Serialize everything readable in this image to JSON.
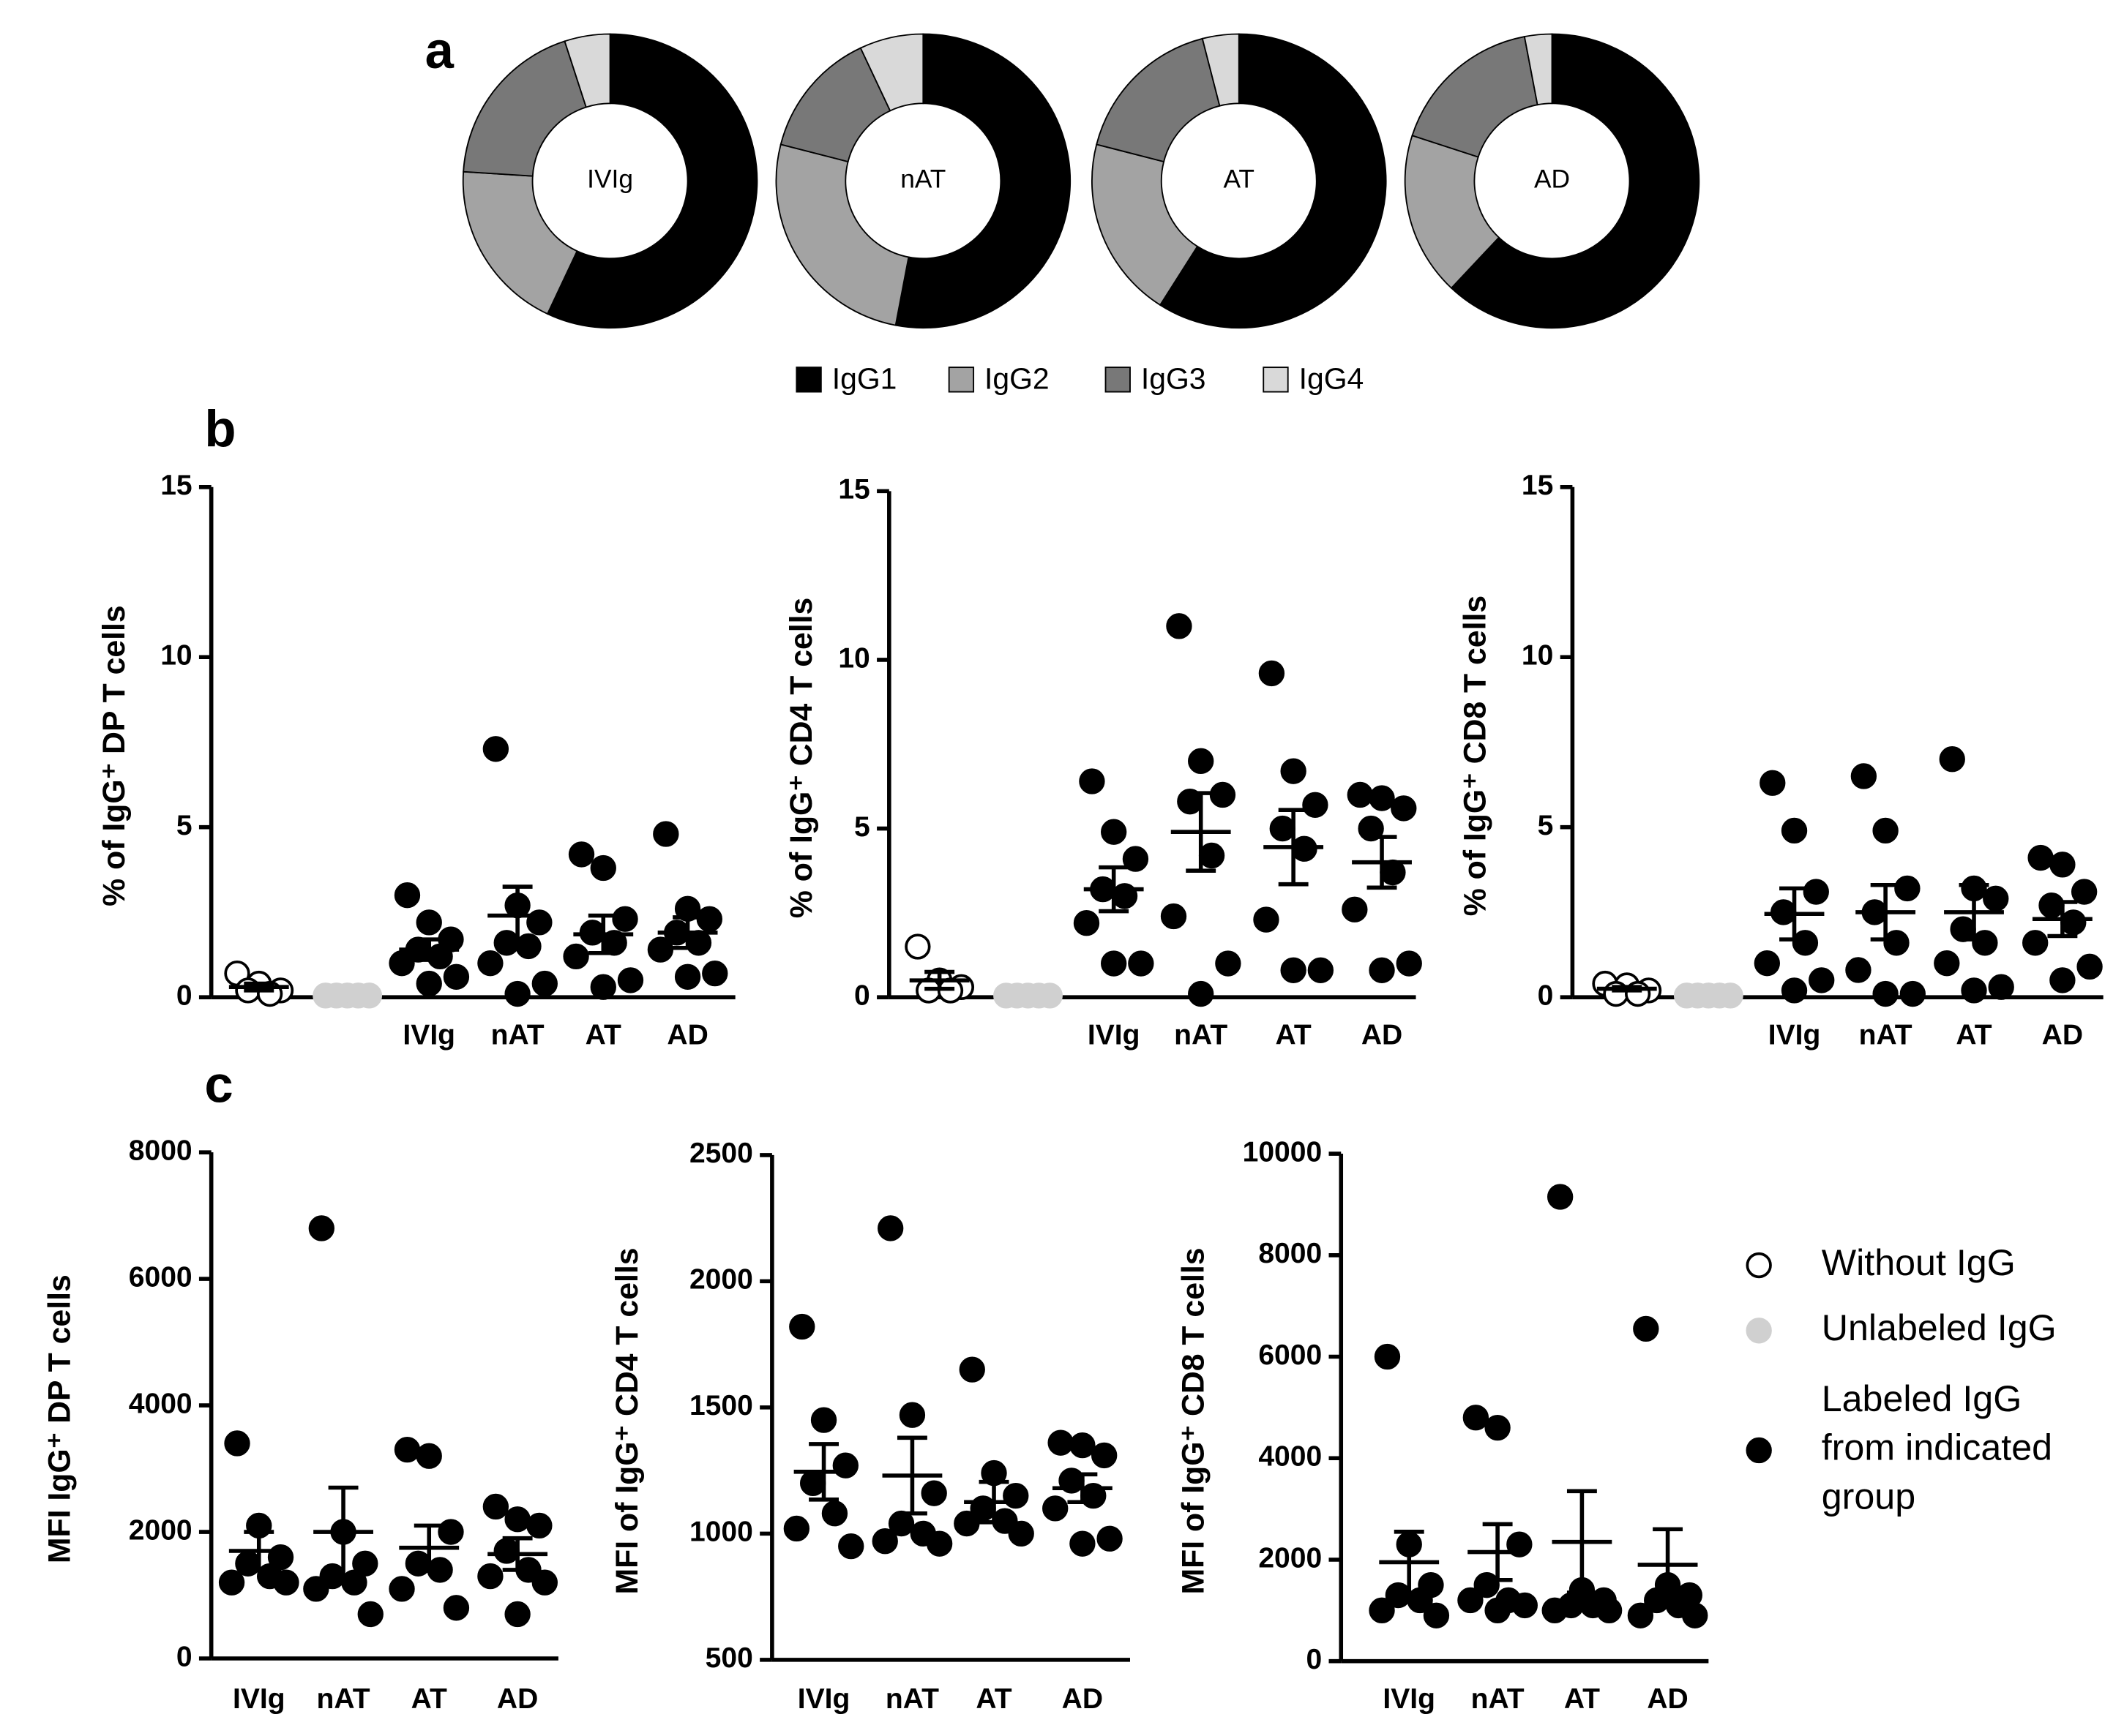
{
  "panel_labels": [
    "a",
    "b",
    "c"
  ],
  "legend": [
    {
      "label_lines": [
        "Without IgG"
      ],
      "fill": "#ffffff",
      "stroke": "#000000"
    },
    {
      "label_lines": [
        "Unlabeled IgG"
      ],
      "fill": "#d0d0d0",
      "stroke": "#d0d0d0"
    },
    {
      "label_lines": [
        "Labeled IgG",
        "from indicated",
        "group"
      ],
      "fill": "#000000",
      "stroke": "#000000"
    }
  ],
  "chart_data": [
    {
      "type": "pie",
      "title": "IVIg",
      "categories": [
        "IgG1",
        "IgG2",
        "IgG3",
        "IgG4"
      ],
      "values": [
        57,
        19,
        19,
        5
      ],
      "colors": [
        "#000000",
        "#a3a3a3",
        "#787878",
        "#d9d9d9"
      ]
    },
    {
      "type": "pie",
      "title": "nAT",
      "categories": [
        "IgG1",
        "IgG2",
        "IgG3",
        "IgG4"
      ],
      "values": [
        53,
        26,
        14,
        7
      ],
      "colors": [
        "#000000",
        "#a3a3a3",
        "#787878",
        "#d9d9d9"
      ]
    },
    {
      "type": "pie",
      "title": "AT",
      "categories": [
        "IgG1",
        "IgG2",
        "IgG3",
        "IgG4"
      ],
      "values": [
        59,
        20,
        17,
        4
      ],
      "colors": [
        "#000000",
        "#a3a3a3",
        "#787878",
        "#d9d9d9"
      ]
    },
    {
      "type": "pie",
      "title": "AD",
      "categories": [
        "IgG1",
        "IgG2",
        "IgG3",
        "IgG4"
      ],
      "values": [
        62,
        18,
        17,
        3
      ],
      "colors": [
        "#000000",
        "#a3a3a3",
        "#787878",
        "#d9d9d9"
      ]
    },
    {
      "type": "dot",
      "y_label": "% of IgG⁺ DP T cells",
      "categories": [
        null,
        null,
        "IVIg",
        "nAT",
        "AT",
        "AD"
      ],
      "colors": [
        "#ffffff",
        "#d0d0d0",
        "#000000",
        "#000000",
        "#000000",
        "#000000"
      ],
      "points": [
        [
          0.7,
          0.4,
          0.2,
          0.2,
          0.1
        ],
        [
          0.05,
          0.05,
          0.05,
          0.05,
          0.05
        ],
        [
          3.0,
          2.2,
          1.7,
          1.4,
          1.2,
          1.0,
          0.6,
          0.4
        ],
        [
          7.3,
          2.7,
          2.2,
          1.6,
          1.5,
          1.0,
          0.4,
          0.1
        ],
        [
          4.2,
          3.8,
          2.3,
          1.9,
          1.6,
          1.2,
          0.5,
          0.3
        ],
        [
          4.8,
          2.6,
          2.3,
          1.9,
          1.6,
          1.4,
          0.7,
          0.6
        ]
      ],
      "means": [
        0.3,
        0.05,
        1.4,
        2.4,
        1.85,
        1.9
      ],
      "sems": [
        0.1,
        0,
        0.3,
        0.85,
        0.55,
        0.45
      ],
      "ylim": [
        0,
        15
      ],
      "yticks": [
        0,
        5,
        10,
        15
      ]
    },
    {
      "type": "dot",
      "y_label": "% of IgG⁺ CD4 T cells",
      "categories": [
        null,
        null,
        "IVIg",
        "nAT",
        "AT",
        "AD"
      ],
      "colors": [
        "#ffffff",
        "#d0d0d0",
        "#000000",
        "#000000",
        "#000000",
        "#000000"
      ],
      "points": [
        [
          1.5,
          0.5,
          0.3,
          0.2,
          0.2
        ],
        [
          0.05,
          0.05,
          0.05,
          0.05,
          0.05
        ],
        [
          6.4,
          4.9,
          4.1,
          3.2,
          3.0,
          2.2,
          1.0,
          1.0
        ],
        [
          11.0,
          7.0,
          6.0,
          5.8,
          4.2,
          2.4,
          1.0,
          0.1
        ],
        [
          9.6,
          6.7,
          5.7,
          5.0,
          4.4,
          2.3,
          0.8,
          0.8
        ],
        [
          6.0,
          5.9,
          5.6,
          5.0,
          3.7,
          2.6,
          1.0,
          0.8
        ]
      ],
      "means": [
        0.5,
        0.05,
        3.2,
        4.9,
        4.45,
        4.0
      ],
      "sems": [
        0.25,
        0,
        0.65,
        1.15,
        1.1,
        0.75
      ],
      "ylim": [
        0,
        15
      ],
      "yticks": [
        0,
        5,
        10,
        15
      ]
    },
    {
      "type": "dot",
      "y_label": "% of IgG⁺ CD8 T cells",
      "categories": [
        null,
        null,
        "IVIg",
        "nAT",
        "AT",
        "AD"
      ],
      "colors": [
        "#ffffff",
        "#d0d0d0",
        "#000000",
        "#000000",
        "#000000",
        "#000000"
      ],
      "points": [
        [
          0.4,
          0.35,
          0.2,
          0.1,
          0.1
        ],
        [
          0.05,
          0.05,
          0.05,
          0.05,
          0.05
        ],
        [
          6.3,
          4.9,
          3.1,
          2.5,
          1.6,
          1.0,
          0.5,
          0.2
        ],
        [
          6.5,
          4.9,
          3.2,
          2.5,
          1.6,
          0.8,
          0.1,
          0.1
        ],
        [
          7.0,
          3.2,
          2.9,
          2.0,
          1.6,
          1.0,
          0.3,
          0.2
        ],
        [
          4.1,
          3.9,
          3.1,
          2.7,
          2.2,
          1.6,
          0.9,
          0.5
        ]
      ],
      "means": [
        0.25,
        0.05,
        2.45,
        2.5,
        2.5,
        2.3
      ],
      "sems": [
        0.05,
        0,
        0.75,
        0.8,
        0.8,
        0.5
      ],
      "ylim": [
        0,
        15
      ],
      "yticks": [
        0,
        5,
        10,
        15
      ]
    },
    {
      "type": "dot",
      "y_label": "MFI IgG⁺ DP T cells",
      "categories": [
        "IVIg",
        "nAT",
        "AT",
        "AD"
      ],
      "colors": [
        "#000000",
        "#000000",
        "#000000",
        "#000000"
      ],
      "points": [
        [
          3400,
          2100,
          1600,
          1500,
          1300,
          1200,
          1200
        ],
        [
          6800,
          2000,
          1500,
          1300,
          1200,
          1100,
          700
        ],
        [
          3300,
          3200,
          2000,
          1500,
          1400,
          1100,
          800
        ],
        [
          2400,
          2200,
          2100,
          1700,
          1400,
          1300,
          1200,
          700
        ]
      ],
      "means": [
        1700,
        2000,
        1750,
        1650
      ],
      "sems": [
        300,
        700,
        350,
        250
      ],
      "ylim": [
        0,
        8000
      ],
      "yticks": [
        0,
        2000,
        4000,
        6000,
        8000
      ]
    },
    {
      "type": "dot",
      "y_label": "MFI of IgG⁺ CD4 T cells",
      "categories": [
        "IVIg",
        "nAT",
        "AT",
        "AD"
      ],
      "colors": [
        "#000000",
        "#000000",
        "#000000",
        "#000000"
      ],
      "points": [
        [
          1820,
          1450,
          1270,
          1200,
          1080,
          1020,
          950
        ],
        [
          2210,
          1470,
          1160,
          1040,
          1000,
          970,
          960
        ],
        [
          1650,
          1240,
          1150,
          1100,
          1050,
          1040,
          1000
        ],
        [
          1360,
          1350,
          1310,
          1210,
          1150,
          1100,
          980,
          960
        ]
      ],
      "means": [
        1245,
        1230,
        1125,
        1180
      ],
      "sems": [
        110,
        150,
        80,
        55
      ],
      "ylim": [
        500,
        2500
      ],
      "yticks": [
        500,
        1000,
        1500,
        2000,
        2500
      ]
    },
    {
      "type": "dot",
      "y_label": "MFI of IgG⁺ CD8 T cells",
      "categories": [
        "IVIg",
        "nAT",
        "AT",
        "AD"
      ],
      "colors": [
        "#000000",
        "#000000",
        "#000000",
        "#000000"
      ],
      "points": [
        [
          6000,
          2300,
          1500,
          1300,
          1200,
          1000,
          900
        ],
        [
          4800,
          4600,
          2300,
          1500,
          1200,
          1200,
          1100,
          1000
        ],
        [
          9150,
          1400,
          1200,
          1100,
          1100,
          1000,
          1000
        ],
        [
          6550,
          1500,
          1300,
          1200,
          1100,
          900,
          900
        ]
      ],
      "means": [
        1950,
        2150,
        2350,
        1900
      ],
      "sems": [
        600,
        550,
        1000,
        700
      ],
      "ylim": [
        0,
        10000
      ],
      "yticks": [
        0,
        2000,
        4000,
        6000,
        8000,
        10000
      ]
    }
  ]
}
